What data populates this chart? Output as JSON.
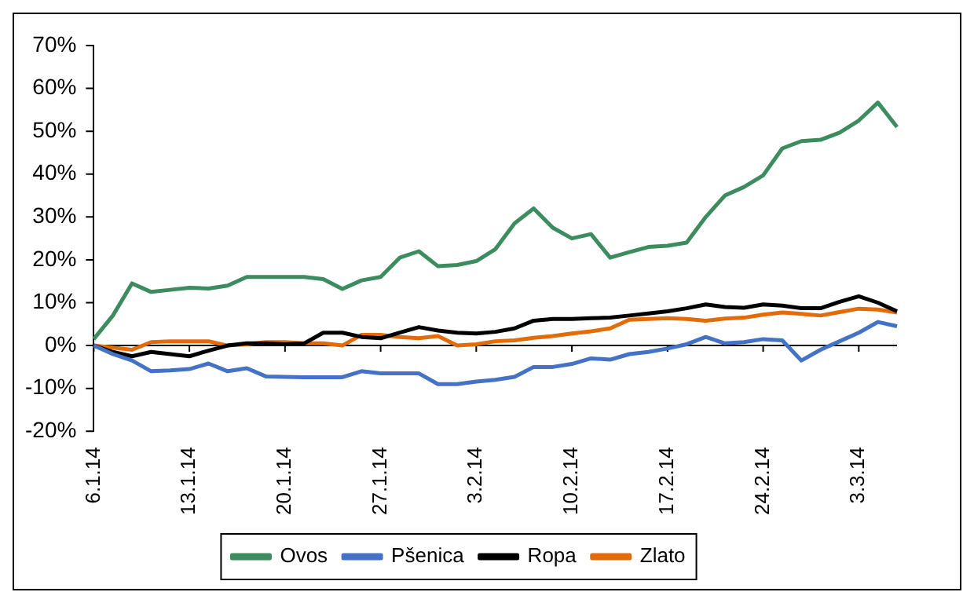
{
  "chart_data": {
    "type": "line",
    "categories": [
      "6.1.14",
      null,
      null,
      null,
      null,
      "13.1.14",
      null,
      null,
      null,
      null,
      "20.1.14",
      null,
      null,
      null,
      null,
      "27.1.14",
      null,
      null,
      null,
      null,
      "3.2.14",
      null,
      null,
      null,
      null,
      "10.2.14",
      null,
      null,
      null,
      null,
      "17.2.14",
      null,
      null,
      null,
      null,
      "24.2.14",
      null,
      null,
      null,
      null,
      "3.3.14",
      null,
      null
    ],
    "series": [
      {
        "name": "Ovos",
        "color": "#3d8c5f",
        "values": [
          1.5,
          7,
          14.5,
          12.5,
          13,
          13.5,
          13.3,
          14,
          16,
          16,
          16,
          16,
          15.5,
          13.2,
          15.2,
          16,
          20.5,
          22,
          18.5,
          18.8,
          19.7,
          22.5,
          28.5,
          32,
          27.5,
          25,
          26,
          20.5,
          21.8,
          23,
          23.3,
          24,
          30,
          35,
          37,
          39.7,
          46,
          47.7,
          48,
          49.7,
          52.5,
          56.7,
          51
        ]
      },
      {
        "name": "Pšenica",
        "color": "#4472c4",
        "values": [
          0,
          -2,
          -3.5,
          -6,
          -5.8,
          -5.5,
          -4.2,
          -6,
          -5.3,
          -7.2,
          -7.3,
          -7.4,
          -7.4,
          -7.4,
          -6,
          -6.5,
          -6.5,
          -6.5,
          -9,
          -9,
          -8.4,
          -8,
          -7.3,
          -5,
          -5,
          -4.3,
          -3,
          -3.3,
          -2,
          -1.5,
          -0.7,
          0.3,
          2,
          0.5,
          0.8,
          1.5,
          1.2,
          -3.5,
          -1,
          1,
          3,
          5.5,
          4.5
        ]
      },
      {
        "name": "Ropa",
        "color": "#000000",
        "values": [
          0,
          -1.5,
          -2.5,
          -1.5,
          -2,
          -2.5,
          -1.2,
          0,
          0.5,
          0.5,
          0.3,
          0.5,
          3,
          3,
          2,
          1.7,
          3,
          4.3,
          3.5,
          3,
          2.8,
          3.2,
          4,
          5.8,
          6.2,
          6.2,
          6.4,
          6.5,
          7,
          7.5,
          8,
          8.7,
          9.6,
          9,
          8.8,
          9.6,
          9.3,
          8.7,
          8.7,
          10.2,
          11.5,
          10,
          8
        ]
      },
      {
        "name": "Zlato",
        "color": "#e36c0a",
        "values": [
          0,
          -0.5,
          -1,
          0.8,
          1,
          1,
          1,
          0,
          0.3,
          0.8,
          0.8,
          0.5,
          0.5,
          0,
          2.5,
          2.5,
          2,
          1.7,
          2.2,
          0,
          0.3,
          1,
          1.2,
          1.8,
          2.2,
          2.8,
          3.3,
          4,
          6,
          6.2,
          6.4,
          6.2,
          5.8,
          6.3,
          6.5,
          7.2,
          7.7,
          7.4,
          7,
          7.8,
          8.6,
          8.4,
          7.7
        ]
      }
    ],
    "ylim": [
      -20,
      70
    ],
    "yticks": [
      {
        "value": -20,
        "label": "-20%"
      },
      {
        "value": -10,
        "label": "-10%"
      },
      {
        "value": 0,
        "label": "0%"
      },
      {
        "value": 10,
        "label": "10%"
      },
      {
        "value": 20,
        "label": "20%"
      },
      {
        "value": 30,
        "label": "30%"
      },
      {
        "value": 40,
        "label": "40%"
      },
      {
        "value": 50,
        "label": "50%"
      },
      {
        "value": 60,
        "label": "60%"
      },
      {
        "value": 70,
        "label": "70%"
      }
    ],
    "legend": "bottom",
    "marker": "none",
    "line_style": "solid"
  }
}
